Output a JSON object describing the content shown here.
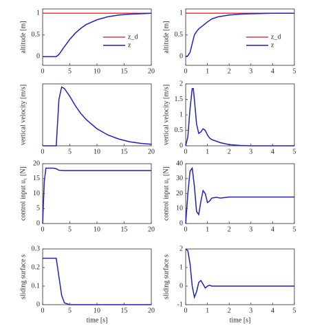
{
  "chart_data": [
    {
      "type": "line",
      "ylabel": "altitude [m]",
      "xlim": [
        0,
        20
      ],
      "xticks": [
        0,
        5,
        10,
        15,
        20
      ],
      "ylim": [
        -0.2,
        1.1
      ],
      "yticks": [
        0,
        0.5,
        1
      ],
      "legend": "center right",
      "series": [
        {
          "name": "z_d",
          "color": "#e0393e",
          "x": [
            0,
            20
          ],
          "values": [
            1,
            1
          ]
        },
        {
          "name": "z",
          "color": "#1f1fbf",
          "x": [
            0,
            2,
            2.5,
            3,
            3.5,
            4,
            5,
            6,
            7,
            8,
            10,
            12,
            14,
            16,
            18,
            20
          ],
          "values": [
            0,
            0,
            0,
            0.05,
            0.14,
            0.23,
            0.4,
            0.54,
            0.65,
            0.74,
            0.85,
            0.92,
            0.96,
            0.98,
            0.99,
            1.0
          ]
        }
      ]
    },
    {
      "type": "line",
      "ylabel": "altitude [m]",
      "xlim": [
        0,
        5
      ],
      "xticks": [
        0,
        1,
        2,
        3,
        4,
        5
      ],
      "ylim": [
        -0.2,
        1.1
      ],
      "yticks": [
        0,
        0.5,
        1
      ],
      "legend": "center right",
      "series": [
        {
          "name": "z_d",
          "color": "#e0393e",
          "x": [
            0,
            5
          ],
          "values": [
            1,
            1
          ]
        },
        {
          "name": "z",
          "color": "#1f1fbf",
          "x": [
            0,
            0.1,
            0.2,
            0.3,
            0.4,
            0.5,
            0.6,
            0.8,
            1,
            1.2,
            1.5,
            2,
            2.5,
            3,
            4,
            5
          ],
          "values": [
            0,
            0.02,
            0.1,
            0.3,
            0.5,
            0.58,
            0.64,
            0.72,
            0.8,
            0.87,
            0.92,
            0.96,
            0.98,
            0.99,
            1,
            1
          ]
        }
      ]
    },
    {
      "type": "line",
      "ylabel": "vertical velocity [m/s]",
      "xlim": [
        0,
        20
      ],
      "xticks": [
        0,
        5,
        10,
        15,
        20
      ],
      "ylim": [
        0,
        0.2
      ],
      "yticks": [],
      "series": [
        {
          "color": "#1f1fbf",
          "x": [
            0,
            2.5,
            3,
            3.5,
            4,
            5,
            6,
            7,
            8,
            10,
            12,
            14,
            16,
            18,
            20
          ],
          "values": [
            0,
            0,
            0.15,
            0.19,
            0.185,
            0.16,
            0.13,
            0.105,
            0.085,
            0.055,
            0.035,
            0.022,
            0.013,
            0.008,
            0.005
          ]
        }
      ]
    },
    {
      "type": "line",
      "ylabel": "vertical velocity [m/s]",
      "xlim": [
        0,
        5
      ],
      "xticks": [
        0,
        1,
        2,
        3,
        4,
        5
      ],
      "ylim": [
        0,
        2
      ],
      "yticks": [
        0,
        0.5,
        1,
        1.5,
        2
      ],
      "series": [
        {
          "color": "#1f1fbf",
          "x": [
            0,
            0.1,
            0.2,
            0.3,
            0.35,
            0.4,
            0.5,
            0.6,
            0.7,
            0.8,
            0.9,
            1.0,
            1.1,
            1.2,
            1.4,
            1.6,
            2,
            2.5,
            3,
            5
          ],
          "values": [
            0,
            0.3,
            1.2,
            1.85,
            1.85,
            1.5,
            0.7,
            0.4,
            0.45,
            0.55,
            0.5,
            0.35,
            0.25,
            0.2,
            0.15,
            0.1,
            0.04,
            0.01,
            0,
            0
          ]
        }
      ]
    },
    {
      "type": "line",
      "ylabel": "control input u₁ [N]",
      "xlim": [
        0,
        20
      ],
      "xticks": [
        0,
        5,
        10,
        15,
        20
      ],
      "ylim": [
        0,
        20
      ],
      "yticks": [
        0,
        5,
        10,
        15,
        20
      ],
      "series": [
        {
          "color": "#1f1fbf",
          "x": [
            0,
            0.3,
            0.6,
            2,
            2.5,
            3,
            4,
            20
          ],
          "values": [
            0,
            14,
            18.5,
            18.5,
            18.3,
            17.8,
            17.7,
            17.7
          ]
        }
      ]
    },
    {
      "type": "line",
      "ylabel": "control input u₁ [N]",
      "xlim": [
        0,
        5
      ],
      "xticks": [
        0,
        1,
        2,
        3,
        4,
        5
      ],
      "ylim": [
        0,
        40
      ],
      "yticks": [
        0,
        10,
        20,
        30,
        40
      ],
      "series": [
        {
          "color": "#1f1fbf",
          "x": [
            0,
            0.1,
            0.2,
            0.3,
            0.4,
            0.5,
            0.6,
            0.7,
            0.8,
            0.9,
            1.0,
            1.1,
            1.2,
            1.4,
            1.6,
            2,
            3,
            5
          ],
          "values": [
            0,
            20,
            35,
            37,
            25,
            8,
            6,
            15,
            22,
            20,
            14,
            15,
            17,
            17.5,
            17,
            17.7,
            17.7,
            17.7
          ]
        }
      ]
    },
    {
      "type": "line",
      "ylabel": "sliding surface s",
      "xlabel": "time [s]",
      "xlim": [
        0,
        20
      ],
      "xticks": [
        0,
        5,
        10,
        15,
        20
      ],
      "ylim": [
        0,
        0.3
      ],
      "yticks": [
        0,
        0.1,
        0.2,
        0.3
      ],
      "series": [
        {
          "color": "#1f1fbf",
          "x": [
            0,
            2.5,
            3,
            3.5,
            4,
            5,
            20
          ],
          "values": [
            0.25,
            0.25,
            0.15,
            0.05,
            0.01,
            0,
            0
          ]
        }
      ]
    },
    {
      "type": "line",
      "ylabel": "sliding surface s",
      "xlabel": "time [s]",
      "xlim": [
        0,
        5
      ],
      "xticks": [
        0,
        1,
        2,
        3,
        4,
        5
      ],
      "ylim": [
        -1,
        2
      ],
      "yticks": [
        -1,
        0,
        1,
        2
      ],
      "series": [
        {
          "color": "#1f1fbf",
          "x": [
            0,
            0.1,
            0.2,
            0.3,
            0.4,
            0.5,
            0.6,
            0.7,
            0.8,
            0.9,
            1.0,
            1.1,
            1.2,
            1.4,
            1.6,
            2,
            5
          ],
          "values": [
            2,
            1.9,
            1.2,
            0,
            -0.6,
            -0.3,
            0.2,
            0.3,
            0.1,
            -0.1,
            0,
            0.05,
            0,
            0,
            0,
            0,
            0
          ]
        }
      ]
    }
  ]
}
